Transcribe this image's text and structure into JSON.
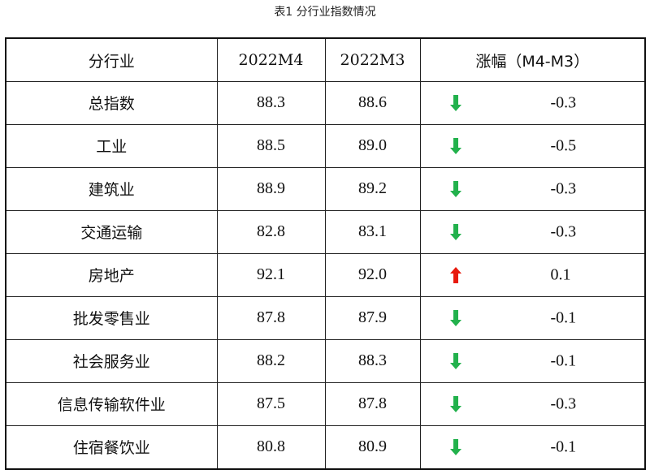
{
  "caption": "表1 分行业指数情况",
  "headers": {
    "sector": "分行业",
    "m4": "2022M4",
    "m3": "2022M3",
    "change": "涨幅（M4-M3）"
  },
  "colors": {
    "down": "#22b14c",
    "up": "#e8190c"
  },
  "rows": [
    {
      "name": "总指数",
      "m4": "88.3",
      "m3": "88.6",
      "direction": "down-arrow-icon",
      "change": "-0.3"
    },
    {
      "name": "工业",
      "m4": "88.5",
      "m3": "89.0",
      "direction": "down-arrow-icon",
      "change": "-0.5"
    },
    {
      "name": "建筑业",
      "m4": "88.9",
      "m3": "89.2",
      "direction": "down-arrow-icon",
      "change": "-0.3"
    },
    {
      "name": "交通运输",
      "m4": "82.8",
      "m3": "83.1",
      "direction": "down-arrow-icon",
      "change": "-0.3"
    },
    {
      "name": "房地产",
      "m4": "92.1",
      "m3": "92.0",
      "direction": "up-arrow-icon",
      "change": "0.1"
    },
    {
      "name": "批发零售业",
      "m4": "87.8",
      "m3": "87.9",
      "direction": "down-arrow-icon",
      "change": "-0.1"
    },
    {
      "name": "社会服务业",
      "m4": "88.2",
      "m3": "88.3",
      "direction": "down-arrow-icon",
      "change": "-0.1"
    },
    {
      "name": "信息传输软件业",
      "m4": "87.5",
      "m3": "87.8",
      "direction": "down-arrow-icon",
      "change": "-0.3"
    },
    {
      "name": "住宿餐饮业",
      "m4": "80.8",
      "m3": "80.9",
      "direction": "down-arrow-icon",
      "change": "-0.1"
    }
  ]
}
